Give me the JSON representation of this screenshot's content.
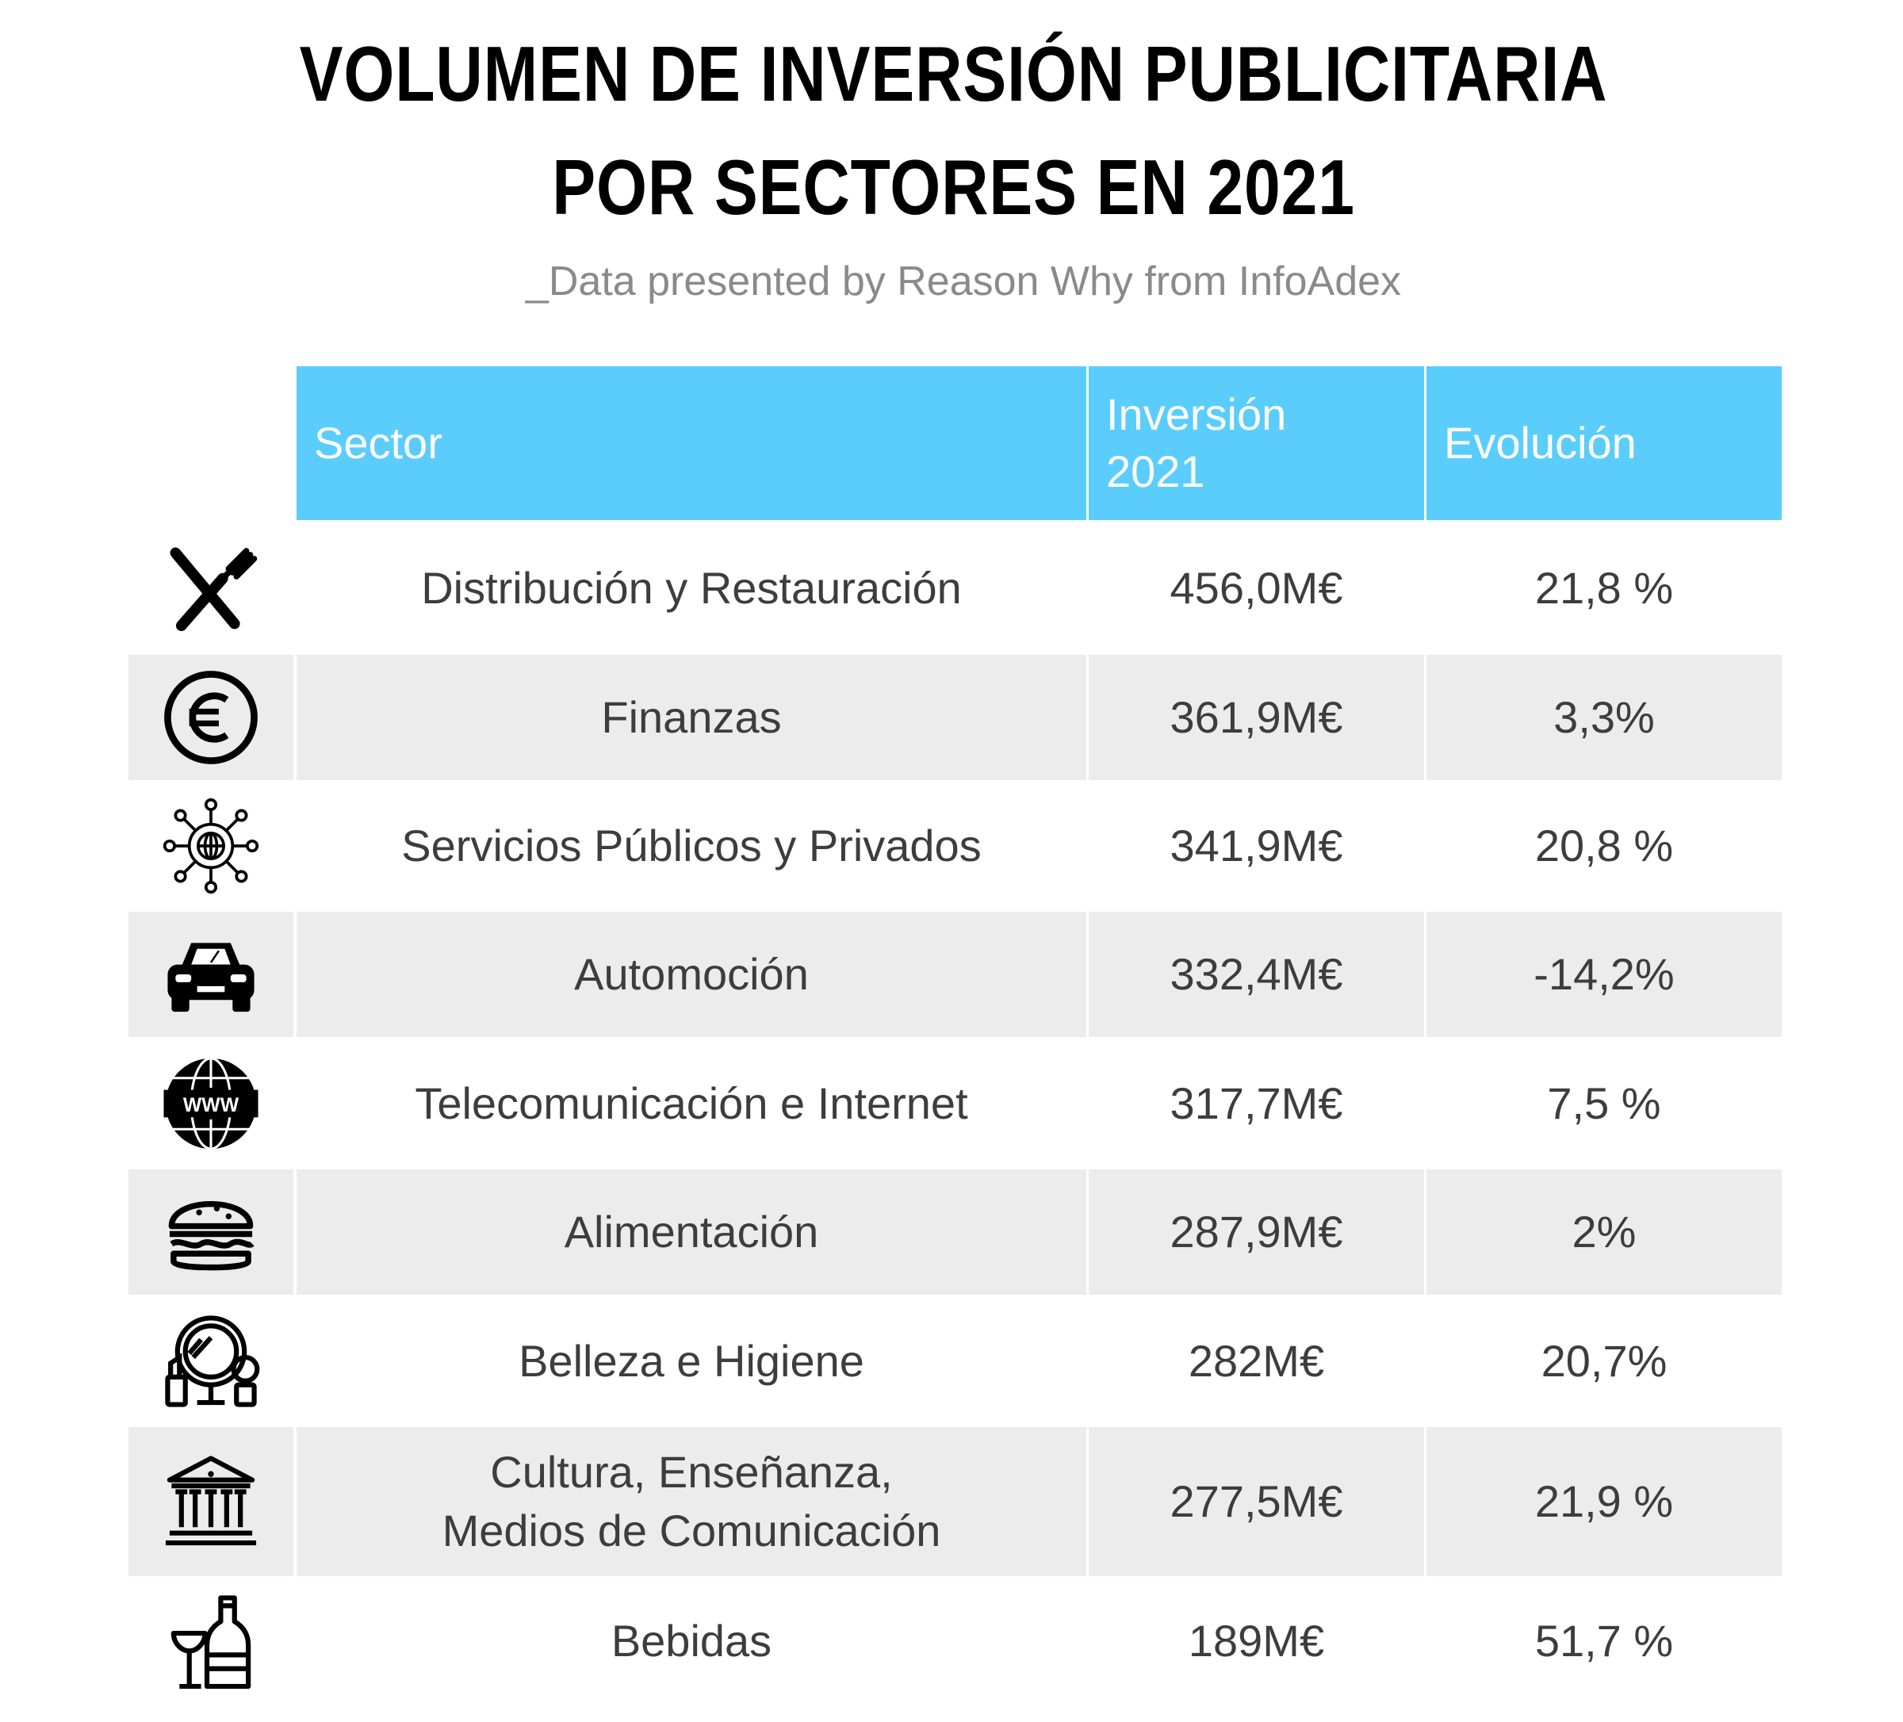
{
  "title": {
    "line1": "VOLUMEN DE INVERSIÓN PUBLICITARIA",
    "line2": "POR SECTORES EN 2021"
  },
  "subtitle": "_Data presented by Reason Why from InfoAdex",
  "table": {
    "headers": {
      "sector": "Sector",
      "investment_line1": "Inversión",
      "investment_line2": "2021",
      "evolution": "Evolución"
    },
    "header_color": "#5bcdfc",
    "shade_color": "#ececec",
    "rows": [
      {
        "icon": "cutlery-icon",
        "sector": "Distribución y Restauración",
        "investment": "456,0M€",
        "evolution": "21,8 %"
      },
      {
        "icon": "euro-coin-icon",
        "sector": "Finanzas",
        "investment": "361,9M€",
        "evolution": "3,3%"
      },
      {
        "icon": "network-globe-icon",
        "sector": "Servicios Públicos y Privados",
        "investment": "341,9M€",
        "evolution": "20,8 %"
      },
      {
        "icon": "car-icon",
        "sector": "Automoción",
        "investment": "332,4M€",
        "evolution": "-14,2%"
      },
      {
        "icon": "www-globe-icon",
        "sector": "Telecomunicación e Internet",
        "investment": "317,7M€",
        "evolution": "7,5 %"
      },
      {
        "icon": "burger-icon",
        "sector": "Alimentación",
        "investment": "287,9M€",
        "evolution": "2%"
      },
      {
        "icon": "mirror-cosmetics-icon",
        "sector": "Belleza e Higiene",
        "investment": "282M€",
        "evolution": "20,7%"
      },
      {
        "icon": "museum-icon",
        "sector": "Cultura, Enseñanza,\nMedios de Comunicación",
        "investment": "277,5M€",
        "evolution": "21,9 %"
      },
      {
        "icon": "bottle-glass-icon",
        "sector": "Bebidas",
        "investment": "189M€",
        "evolution": "51,7 %"
      }
    ]
  },
  "chart_data": {
    "type": "table",
    "title": "VOLUMEN DE INVERSIÓN PUBLICITARIA POR SECTORES EN 2021",
    "subtitle": "_Data presented by Reason Why from InfoAdex",
    "columns": [
      "Sector",
      "Inversión 2021",
      "Evolución"
    ],
    "categories": [
      "Distribución y Restauración",
      "Finanzas",
      "Servicios Públicos y Privados",
      "Automoción",
      "Telecomunicación e Internet",
      "Alimentación",
      "Belleza e Higiene",
      "Cultura, Enseñanza, Medios de Comunicación",
      "Bebidas"
    ],
    "series": [
      {
        "name": "Inversión 2021",
        "values": [
          456.0,
          361.9,
          341.9,
          332.4,
          317.7,
          287.9,
          282,
          277.5,
          189
        ]
      },
      {
        "name": "Evolución",
        "values": [
          21.8,
          3.3,
          20.8,
          -14.2,
          7.5,
          2,
          20.7,
          21.9,
          51.7
        ]
      }
    ]
  }
}
